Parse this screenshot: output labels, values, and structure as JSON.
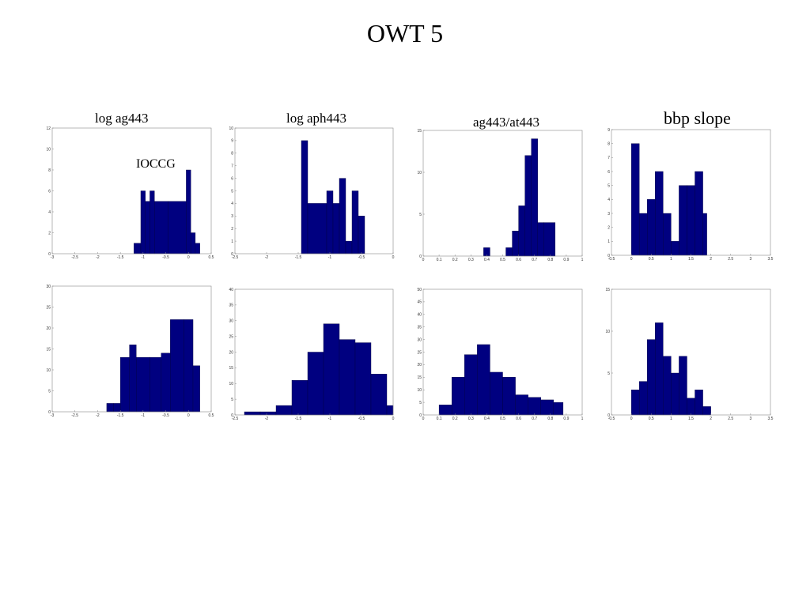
{
  "title": "OWT 5",
  "column_labels": [
    "log ag443",
    "log aph443",
    "ag443/at443",
    "bbp slope"
  ],
  "annotation": "IOCCG",
  "colors": {
    "bar": "#000080",
    "axis": "#888888",
    "background": "#ffffff"
  },
  "chart_data": [
    {
      "type": "bar",
      "title": "log ag443",
      "xlim": [
        -3,
        0.5
      ],
      "ylim": [
        0,
        12
      ],
      "grid": false,
      "xticks": [
        -3,
        -2.5,
        -2,
        -1.5,
        -1,
        -0.5,
        0,
        0.5
      ],
      "yticks": [
        0,
        2,
        4,
        6,
        8,
        10,
        12
      ],
      "bin_edges": [
        -1.2,
        -1.05,
        -0.95,
        -0.85,
        -0.75,
        -0.45,
        -0.05,
        0.05,
        0.15,
        0.25
      ],
      "values": [
        1,
        6,
        5,
        6,
        5,
        5,
        8,
        2,
        1
      ]
    },
    {
      "type": "bar",
      "title": "log aph443",
      "xlim": [
        -2.5,
        0
      ],
      "ylim": [
        0,
        10
      ],
      "grid": false,
      "xticks": [
        -2.5,
        -2,
        -1.5,
        -1,
        -0.5,
        0
      ],
      "yticks": [
        0,
        1,
        2,
        3,
        4,
        5,
        6,
        7,
        8,
        9,
        10
      ],
      "bin_edges": [
        -1.45,
        -1.35,
        -1.05,
        -0.95,
        -0.85,
        -0.75,
        -0.65,
        -0.55,
        -0.45,
        -0.4
      ],
      "values": [
        9,
        4,
        5,
        4,
        6,
        1,
        5,
        3,
        0
      ]
    },
    {
      "type": "bar",
      "title": "ag443/at443",
      "xlim": [
        0,
        1
      ],
      "ylim": [
        0,
        15
      ],
      "grid": false,
      "xticks": [
        0,
        0.1,
        0.2,
        0.3,
        0.4,
        0.5,
        0.6,
        0.7,
        0.8,
        0.9,
        1
      ],
      "yticks": [
        0,
        5,
        10,
        15
      ],
      "bin_edges": [
        0.38,
        0.42,
        0.52,
        0.56,
        0.6,
        0.64,
        0.68,
        0.72,
        0.76,
        0.83
      ],
      "values": [
        1,
        0,
        1,
        3,
        6,
        12,
        14,
        4,
        4
      ]
    },
    {
      "type": "bar",
      "title": "bbp slope",
      "xlim": [
        -0.5,
        3.5
      ],
      "ylim": [
        0,
        9
      ],
      "grid": false,
      "xticks": [
        -0.5,
        0,
        0.5,
        1,
        1.5,
        2,
        2.5,
        3,
        3.5
      ],
      "yticks": [
        0,
        1,
        2,
        3,
        4,
        5,
        6,
        7,
        8,
        9
      ],
      "bin_edges": [
        0,
        0.2,
        0.4,
        0.6,
        0.8,
        1,
        1.2,
        1.4,
        1.6,
        1.8,
        1.9
      ],
      "values": [
        8,
        3,
        4,
        6,
        3,
        1,
        5,
        5,
        6,
        3
      ]
    },
    {
      "type": "bar",
      "title": "",
      "xlim": [
        -3,
        0.5
      ],
      "ylim": [
        0,
        30
      ],
      "grid": false,
      "xticks": [
        -3,
        -2.5,
        -2,
        -1.5,
        -1,
        -0.5,
        0,
        0.5
      ],
      "yticks": [
        0,
        5,
        10,
        15,
        20,
        25,
        30
      ],
      "bin_edges": [
        -1.8,
        -1.65,
        -1.5,
        -1.3,
        -1.15,
        -0.85,
        -0.6,
        -0.4,
        -0.1,
        0.1,
        0.25
      ],
      "values": [
        2,
        2,
        13,
        16,
        13,
        13,
        14,
        22,
        22,
        11
      ]
    },
    {
      "type": "bar",
      "title": "",
      "xlim": [
        -2.5,
        0
      ],
      "ylim": [
        0,
        40
      ],
      "grid": false,
      "xticks": [
        -2.5,
        -2,
        -1.5,
        -1,
        -0.5,
        0
      ],
      "yticks": [
        0,
        5,
        10,
        15,
        20,
        25,
        30,
        35,
        40
      ],
      "bin_edges": [
        -2.35,
        -2.1,
        -1.85,
        -1.6,
        -1.35,
        -1.1,
        -0.85,
        -0.6,
        -0.35,
        -0.1,
        0
      ],
      "values": [
        1,
        1,
        3,
        11,
        20,
        29,
        24,
        23,
        13,
        3
      ]
    },
    {
      "type": "bar",
      "title": "",
      "xlim": [
        0,
        1
      ],
      "ylim": [
        0,
        50
      ],
      "grid": false,
      "xticks": [
        0,
        0.1,
        0.2,
        0.3,
        0.4,
        0.5,
        0.6,
        0.7,
        0.8,
        0.9,
        1
      ],
      "yticks": [
        0,
        5,
        10,
        15,
        20,
        25,
        30,
        35,
        40,
        45,
        50
      ],
      "bin_edges": [
        0.1,
        0.18,
        0.26,
        0.34,
        0.42,
        0.5,
        0.58,
        0.66,
        0.74,
        0.82,
        0.88
      ],
      "values": [
        4,
        15,
        24,
        28,
        17,
        15,
        8,
        7,
        6,
        5
      ]
    },
    {
      "type": "bar",
      "title": "",
      "xlim": [
        -0.5,
        3.5
      ],
      "ylim": [
        0,
        15
      ],
      "grid": false,
      "xticks": [
        -0.5,
        0,
        0.5,
        1,
        1.5,
        2,
        2.5,
        3,
        3.5
      ],
      "yticks": [
        0,
        5,
        10,
        15
      ],
      "bin_edges": [
        0,
        0.2,
        0.4,
        0.6,
        0.8,
        1,
        1.2,
        1.4,
        1.6,
        1.8,
        2
      ],
      "values": [
        3,
        4,
        9,
        11,
        7,
        5,
        7,
        2,
        3,
        1
      ]
    }
  ]
}
